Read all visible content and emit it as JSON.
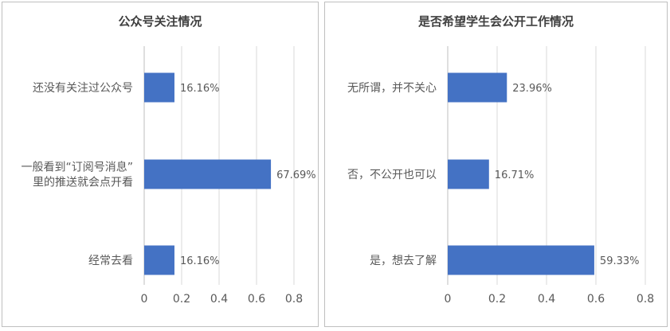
{
  "chart_data": [
    {
      "type": "bar",
      "orientation": "horizontal",
      "title": "公众号关注情况",
      "categories": [
        [
          "还没有关注过公众号"
        ],
        [
          "一般看到“订阅号消息”",
          "里的推送就会点开看"
        ],
        [
          "经常去看"
        ]
      ],
      "values": [
        0.1616,
        0.6769,
        0.1616
      ],
      "data_labels": [
        "16.16%",
        "67.69%",
        "16.16%"
      ],
      "xlim": [
        0,
        0.8
      ],
      "ticks": [
        "0",
        "0.2",
        "0.4",
        "0.6",
        "0.8"
      ],
      "tick_values": [
        0,
        0.2,
        0.4,
        0.6,
        0.8
      ],
      "grid": true,
      "legend": "none",
      "bar_color": "#4472c4"
    },
    {
      "type": "bar",
      "orientation": "horizontal",
      "title": "是否希望学生会公开工作情况",
      "categories": [
        [
          "无所谓，并不关心"
        ],
        [
          "否，不公开也可以"
        ],
        [
          "是，想去了解"
        ]
      ],
      "values": [
        0.2396,
        0.1671,
        0.5933
      ],
      "data_labels": [
        "23.96%",
        "16.71%",
        "59.33%"
      ],
      "xlim": [
        0,
        0.8
      ],
      "ticks": [
        "0",
        "0.2",
        "0.4",
        "0.6",
        "0.8"
      ],
      "tick_values": [
        0,
        0.2,
        0.4,
        0.6,
        0.8
      ],
      "grid": true,
      "legend": "none",
      "bar_color": "#4472c4"
    }
  ]
}
